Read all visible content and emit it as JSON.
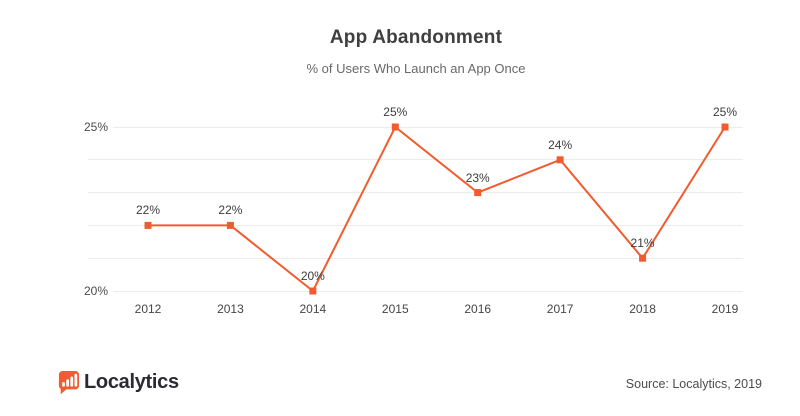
{
  "chart_data": {
    "type": "line",
    "title": "App Abandonment",
    "subtitle": "% of Users Who Launch an App Once",
    "categories": [
      "2012",
      "2013",
      "2014",
      "2015",
      "2016",
      "2017",
      "2018",
      "2019"
    ],
    "values": [
      22,
      22,
      20,
      25,
      23,
      24,
      21,
      25
    ],
    "point_labels": [
      "22%",
      "22%",
      "20%",
      "25%",
      "23%",
      "24%",
      "21%",
      "25%"
    ],
    "xlabel": "",
    "ylabel": "",
    "ylim": [
      20,
      25
    ],
    "grid_step": 1,
    "grid": true,
    "legend": false,
    "y_axis_labels": [
      {
        "value": 25,
        "label": "25%"
      },
      {
        "value": 20,
        "label": "20%"
      }
    ],
    "line_color": "#f15b2e",
    "marker": "square",
    "grid_color": "#ececec"
  },
  "footer": {
    "logo_text": "Localytics",
    "logo_icon": "bar-chart-speech-bubble-icon",
    "source": "Source: Localytics, 2019"
  },
  "colors": {
    "accent_orange": "#f15b2e",
    "title_text": "#3f3f3f",
    "subtitle_text": "#686868",
    "axis_text": "#4a4a4a",
    "grid_line": "#ececec",
    "logo_text": "#2a2a33",
    "background": "#ffffff"
  }
}
